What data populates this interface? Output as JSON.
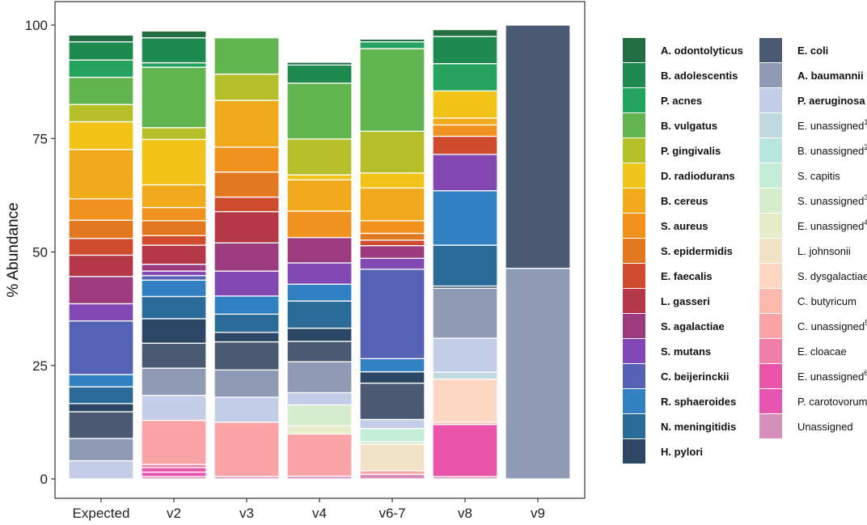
{
  "chart_data": {
    "type": "bar",
    "stacked": true,
    "title": "",
    "xlabel": "",
    "ylabel": "% Abundance",
    "ylim": [
      0,
      100
    ],
    "yticks": [
      0,
      25,
      50,
      75,
      100
    ],
    "grid": false,
    "legend_position": "right",
    "categories": [
      "Expected",
      "v2",
      "v3",
      "v4",
      "v6-7",
      "v8",
      "v9"
    ],
    "series": [
      {
        "name": "Unassigned",
        "bold": false,
        "sup": "",
        "color": "#d68fbb",
        "values": [
          0,
          0.5,
          0.5,
          0.6,
          1.0,
          0.5,
          0
        ]
      },
      {
        "name": "P. carotovorum",
        "bold": false,
        "sup": "",
        "color": "#e655b0",
        "values": [
          0,
          1.0,
          0,
          0,
          0,
          0,
          0
        ]
      },
      {
        "name": "E. unassigned",
        "bold": false,
        "sup": "6",
        "color": "#e855a8",
        "values": [
          0,
          1.0,
          0,
          0,
          0,
          11.5,
          0
        ]
      },
      {
        "name": "E. cloacae",
        "bold": false,
        "sup": "",
        "color": "#f07ea6",
        "values": [
          0,
          0.7,
          0,
          0,
          0,
          0,
          0
        ]
      },
      {
        "name": "C. unassigned",
        "bold": false,
        "sup": "5",
        "color": "#fca3a8",
        "values": [
          0,
          9.7,
          12.0,
          9.3,
          0.8,
          0,
          0
        ]
      },
      {
        "name": "C. butyricum",
        "bold": false,
        "sup": "",
        "color": "#fcb9ae",
        "values": [
          0,
          0,
          0,
          0,
          0,
          0.5,
          0
        ]
      },
      {
        "name": "S. dysgalactiae",
        "bold": false,
        "sup": "",
        "color": "#fcd8c4",
        "values": [
          0,
          0,
          0,
          0,
          0,
          9.5,
          0
        ]
      },
      {
        "name": "L. johnsonii",
        "bold": false,
        "sup": "",
        "color": "#f2e2c6",
        "values": [
          0,
          0,
          0,
          0,
          5.8,
          0,
          0
        ]
      },
      {
        "name": "E. unassigned",
        "bold": false,
        "sup": "4",
        "color": "#e6ecc8",
        "values": [
          0,
          0,
          0,
          1.8,
          0,
          0,
          0
        ]
      },
      {
        "name": "S. unassigned",
        "bold": false,
        "sup": "3",
        "color": "#d5edcc",
        "values": [
          0,
          0,
          0,
          4.6,
          0.6,
          0,
          0
        ]
      },
      {
        "name": "S. capitis",
        "bold": false,
        "sup": "",
        "color": "#c4ecd7",
        "values": [
          0,
          0,
          0,
          0,
          2.9,
          0,
          0
        ]
      },
      {
        "name": "B. unassigned",
        "bold": false,
        "sup": "2",
        "color": "#b7e6dc",
        "values": [
          0,
          0,
          0,
          0,
          0,
          0,
          0
        ]
      },
      {
        "name": "E. unassigned",
        "bold": false,
        "sup": "1",
        "color": "#c0d9de",
        "values": [
          0,
          0,
          0,
          0,
          0,
          1.5,
          0
        ]
      },
      {
        "name": "P. aeruginosa",
        "bold": true,
        "sup": "",
        "color": "#c4cde8",
        "values": [
          4.0,
          5.5,
          5.5,
          2.7,
          2.0,
          7.5,
          0
        ]
      },
      {
        "name": "A. baumannii",
        "bold": true,
        "sup": "",
        "color": "#8f9bb4",
        "values": [
          4.9,
          6.0,
          6.0,
          6.8,
          0,
          11.0,
          46.4
        ]
      },
      {
        "name": "E. coli",
        "bold": true,
        "sup": "",
        "color": "#4a5a72",
        "values": [
          5.9,
          5.5,
          6.2,
          4.5,
          8.0,
          0,
          53.6
        ]
      },
      {
        "name": "H. pylori",
        "bold": true,
        "sup": "",
        "color": "#2c4766",
        "values": [
          1.8,
          5.4,
          2.1,
          2.9,
          2.5,
          0.5,
          0
        ]
      },
      {
        "name": "N. meningitidis",
        "bold": true,
        "sup": "",
        "color": "#2a6b98",
        "values": [
          3.7,
          4.9,
          4.0,
          6.0,
          0,
          9.0,
          0
        ]
      },
      {
        "name": "R. sphaeroides",
        "bold": true,
        "sup": "",
        "color": "#3281c2",
        "values": [
          2.7,
          3.6,
          4.0,
          3.7,
          2.9,
          12.0,
          0
        ]
      },
      {
        "name": "C. beijerinckii",
        "bold": true,
        "sup": "",
        "color": "#5562b4",
        "values": [
          11.8,
          1.0,
          0,
          0,
          19.7,
          0,
          0
        ]
      },
      {
        "name": "S. mutans",
        "bold": true,
        "sup": "",
        "color": "#8249b4",
        "values": [
          3.8,
          1.0,
          5.5,
          4.7,
          2.4,
          8.0,
          0
        ]
      },
      {
        "name": "S. agalactiae",
        "bold": true,
        "sup": "",
        "color": "#9c3c7f",
        "values": [
          6.0,
          1.5,
          6.2,
          5.6,
          2.8,
          0,
          0
        ]
      },
      {
        "name": "L. gasseri",
        "bold": true,
        "sup": "",
        "color": "#b53849",
        "values": [
          4.7,
          4.2,
          6.9,
          0,
          0,
          0,
          0
        ]
      },
      {
        "name": "E. faecalis",
        "bold": true,
        "sup": "",
        "color": "#cf4b2e",
        "values": [
          3.7,
          2.1,
          3.2,
          0,
          1.2,
          4.0,
          0
        ]
      },
      {
        "name": "S. epidermidis",
        "bold": true,
        "sup": "",
        "color": "#e2781f",
        "values": [
          4.0,
          3.3,
          5.5,
          0,
          1.5,
          0,
          0
        ]
      },
      {
        "name": "S. aureus",
        "bold": true,
        "sup": "",
        "color": "#f0921d",
        "values": [
          4.7,
          2.9,
          5.5,
          5.8,
          2.8,
          2.5,
          0
        ]
      },
      {
        "name": "B. cereus",
        "bold": true,
        "sup": "",
        "color": "#f1aa1b",
        "values": [
          10.9,
          5.0,
          10.3,
          6.9,
          7.2,
          1.5,
          0
        ]
      },
      {
        "name": "D. radiodurans",
        "bold": true,
        "sup": "",
        "color": "#f2c419",
        "values": [
          6.1,
          10.0,
          0,
          1.1,
          3.3,
          6.0,
          0
        ]
      },
      {
        "name": "P. gingivalis",
        "bold": true,
        "sup": "",
        "color": "#b5bf2a",
        "values": [
          3.8,
          2.6,
          5.8,
          7.9,
          9.2,
          0,
          0
        ]
      },
      {
        "name": "B. vulgatus",
        "bold": true,
        "sup": "",
        "color": "#61b44e",
        "values": [
          6.0,
          13.3,
          8.0,
          12.3,
          18.2,
          0,
          0
        ]
      },
      {
        "name": "P. acnes",
        "bold": true,
        "sup": "",
        "color": "#25a35e",
        "values": [
          3.8,
          1.0,
          0,
          0,
          1.5,
          6.0,
          0
        ]
      },
      {
        "name": "B. adolescentis",
        "bold": true,
        "sup": "",
        "color": "#1f8a4f",
        "values": [
          4.0,
          5.5,
          0,
          4.0,
          0,
          6.0,
          0
        ]
      },
      {
        "name": "A. odontolyticus",
        "bold": true,
        "sup": "",
        "color": "#216e42",
        "values": [
          1.5,
          1.5,
          0,
          0.6,
          0.6,
          1.5,
          0
        ]
      }
    ]
  }
}
